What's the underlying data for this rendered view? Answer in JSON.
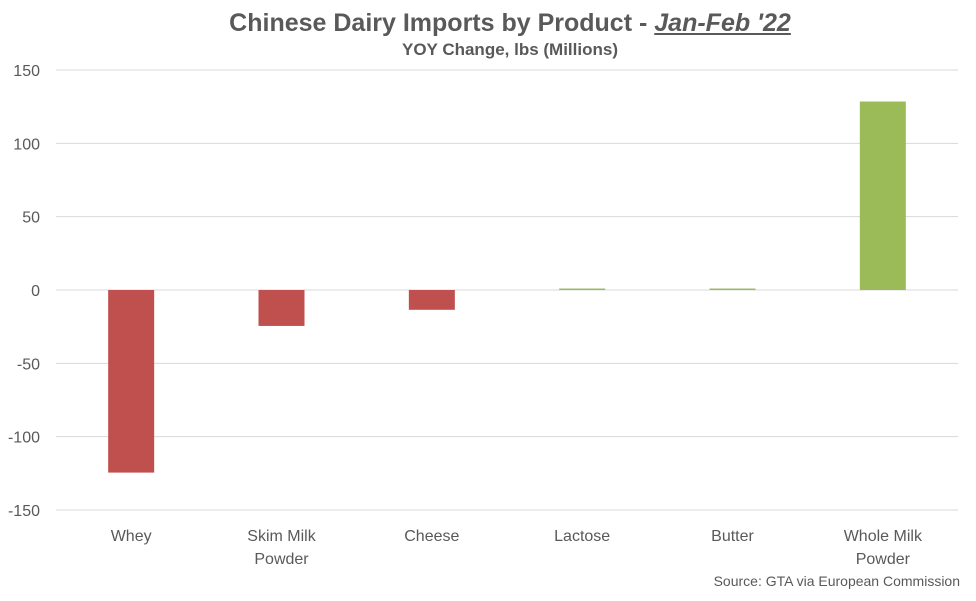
{
  "chart_data": {
    "type": "bar",
    "title_main": "Chinese Dairy Imports by Product - ",
    "title_highlight": "Jan-Feb '22",
    "subtitle": "YOY Change, lbs (Millions)",
    "categories": [
      [
        "Whey"
      ],
      [
        "Skim Milk",
        "Powder"
      ],
      [
        "Cheese"
      ],
      [
        "Lactose"
      ],
      [
        "Butter"
      ],
      [
        "Whole Milk",
        "Powder"
      ]
    ],
    "values": [
      -124.5,
      -24.5,
      -13.5,
      1.0,
      1.0,
      128.5
    ],
    "yticks": [
      150,
      100,
      50,
      0,
      -50,
      -100,
      -150
    ],
    "ylim": [
      -150,
      150
    ],
    "grid": true,
    "colors": {
      "negative": "#C0504D",
      "positive": "#9BBB59",
      "grid": "#D9D9D9",
      "text": "#595959"
    },
    "source": "Source: GTA via European Commission"
  }
}
